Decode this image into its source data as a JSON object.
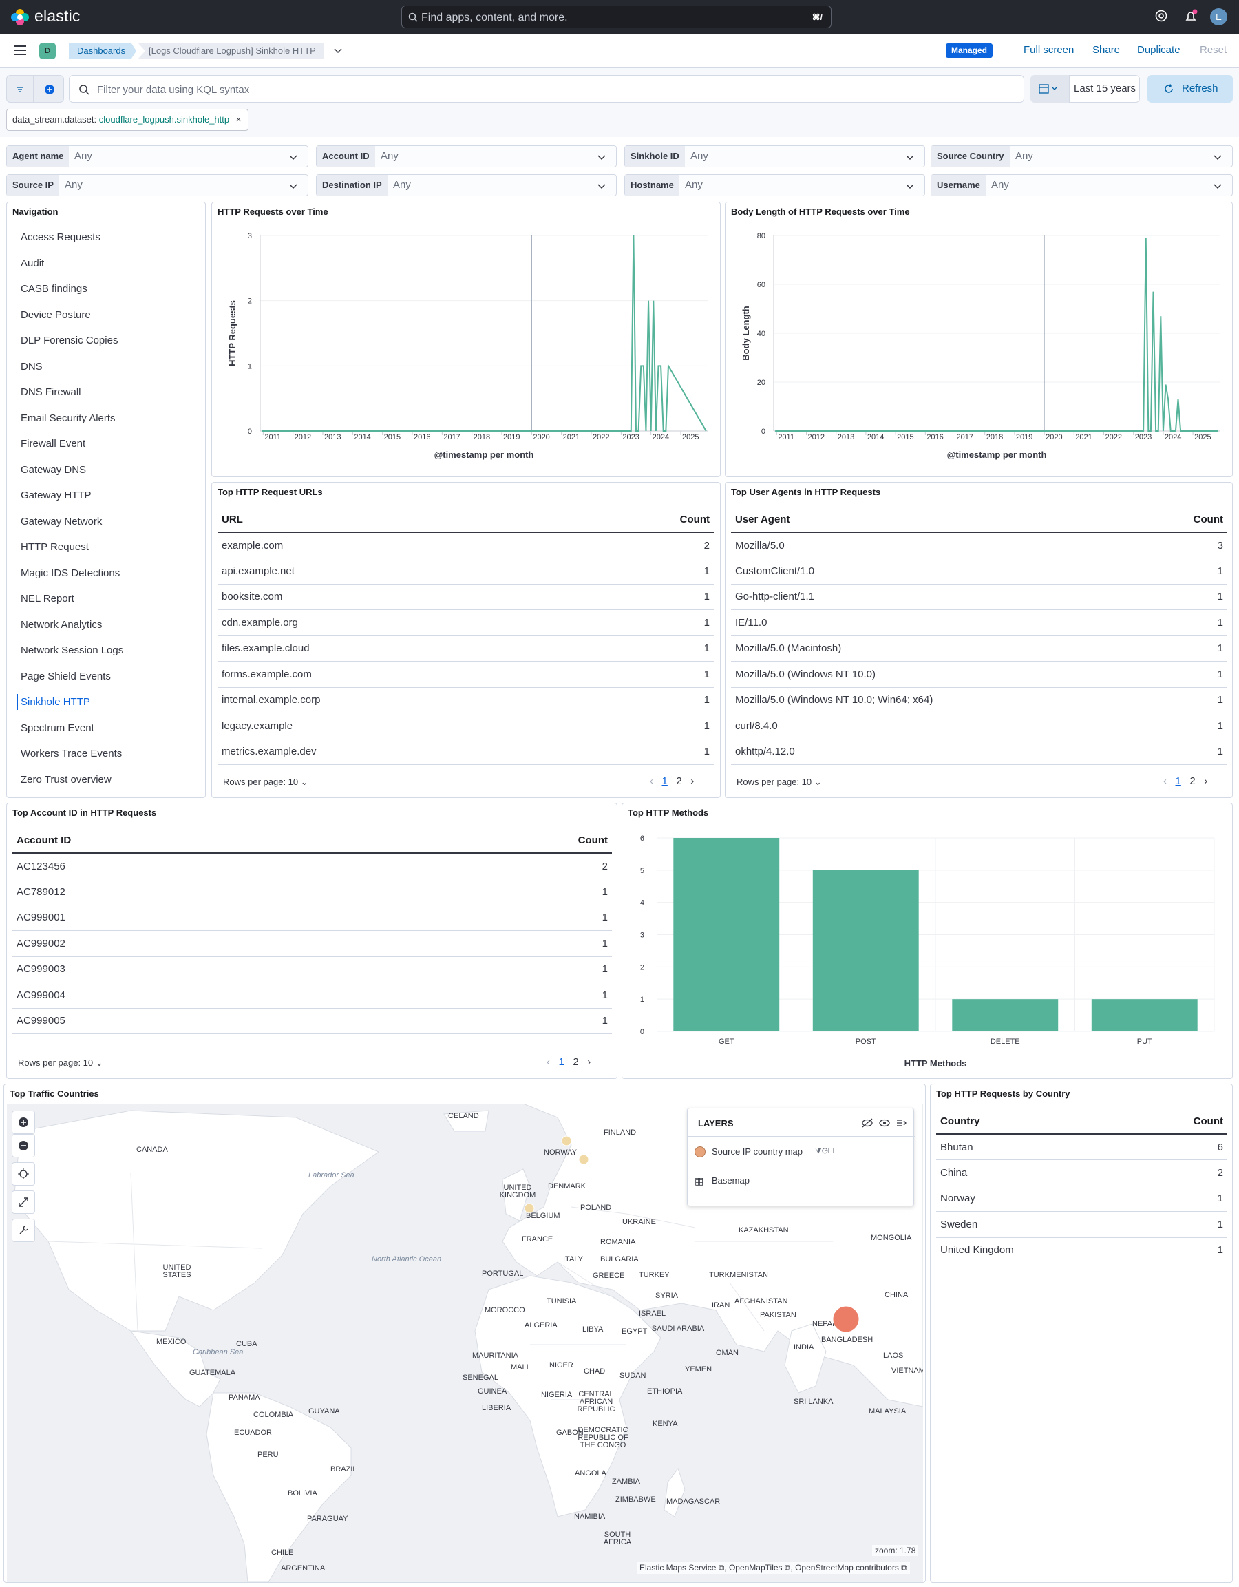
{
  "header": {
    "logo": "elastic",
    "search_placeholder": "Find apps, content, and more.",
    "search_shortcut": "⌘/",
    "avatar": "E"
  },
  "breadcrumbs": {
    "app_badge": "D",
    "root": "Dashboards",
    "current": "[Logs Cloudflare Logpush] Sinkhole HTTP",
    "managed": "Managed",
    "actions": [
      "Full screen",
      "Share",
      "Duplicate",
      "Reset"
    ]
  },
  "query": {
    "placeholder": "Filter your data using KQL syntax",
    "time_range": "Last 15 years",
    "refresh": "Refresh"
  },
  "filter_pill": {
    "key": "data_stream.dataset: ",
    "value": "cloudflare_logpush.sinkhole_http"
  },
  "controls": [
    {
      "label": "Agent name",
      "value": "Any"
    },
    {
      "label": "Account ID",
      "value": "Any"
    },
    {
      "label": "Sinkhole ID",
      "value": "Any"
    },
    {
      "label": "Source Country",
      "value": "Any"
    },
    {
      "label": "Source IP",
      "value": "Any"
    },
    {
      "label": "Destination IP",
      "value": "Any"
    },
    {
      "label": "Hostname",
      "value": "Any"
    },
    {
      "label": "Username",
      "value": "Any"
    }
  ],
  "navigation": {
    "title": "Navigation",
    "items": [
      "Access Requests",
      "Audit",
      "CASB findings",
      "Device Posture",
      "DLP Forensic Copies",
      "DNS",
      "DNS Firewall",
      "Email Security Alerts",
      "Firewall Event",
      "Gateway DNS",
      "Gateway HTTP",
      "Gateway Network",
      "HTTP Request",
      "Magic IDS Detections",
      "NEL Report",
      "Network Analytics",
      "Network Session Logs",
      "Page Shield Events",
      "Sinkhole HTTP",
      "Spectrum Event",
      "Workers Trace Events",
      "Zero Trust overview"
    ],
    "active": "Sinkhole HTTP"
  },
  "chart_data": [
    {
      "type": "line",
      "title": "HTTP Requests over Time",
      "xlabel": "@timestamp per month",
      "ylabel": "HTTP Requests",
      "ylim": [
        0,
        3
      ],
      "yticks": [
        0,
        1,
        2,
        3
      ],
      "xticks": [
        "2011",
        "2012",
        "2013",
        "2014",
        "2015",
        "2016",
        "2017",
        "2018",
        "2019",
        "2020",
        "2021",
        "2022",
        "2023",
        "2024",
        "2025"
      ],
      "series": [
        {
          "x": [
            "2023-05",
            "2023-06",
            "2023-07",
            "2023-08",
            "2023-09",
            "2023-10",
            "2023-11",
            "2023-12",
            "2024-01",
            "2024-02",
            "2024-03",
            "2024-04",
            "2024-05",
            "2024-06",
            "2024-07",
            "2024-08"
          ],
          "y": [
            0,
            3,
            0,
            0,
            1,
            1,
            0,
            2,
            0,
            2,
            0,
            1,
            1,
            0,
            0,
            1
          ]
        }
      ]
    },
    {
      "type": "line",
      "title": "Body Length of HTTP Requests over Time",
      "xlabel": "@timestamp per month",
      "ylabel": "Body Length",
      "ylim": [
        0,
        80
      ],
      "yticks": [
        0,
        20,
        40,
        60,
        80
      ],
      "xticks": [
        "2011",
        "2012",
        "2013",
        "2014",
        "2015",
        "2016",
        "2017",
        "2018",
        "2019",
        "2020",
        "2021",
        "2022",
        "2023",
        "2024",
        "2025"
      ],
      "series": [
        {
          "x": [
            "2023-05",
            "2023-06",
            "2023-07",
            "2023-08",
            "2023-09",
            "2023-10",
            "2023-11",
            "2023-12",
            "2024-01",
            "2024-02",
            "2024-03",
            "2024-04",
            "2024-05",
            "2024-06",
            "2024-07",
            "2024-08"
          ],
          "y": [
            0,
            79,
            0,
            0,
            57,
            0,
            0,
            47,
            0,
            19,
            13,
            0,
            0,
            0,
            13,
            0
          ]
        }
      ]
    },
    {
      "type": "bar",
      "title": "Top HTTP Methods",
      "xlabel": "HTTP Methods",
      "ylim": [
        0,
        6
      ],
      "yticks": [
        0,
        1,
        2,
        3,
        4,
        5,
        6
      ],
      "categories": [
        "GET",
        "POST",
        "DELETE",
        "PUT"
      ],
      "values": [
        6,
        5,
        1,
        1
      ]
    }
  ],
  "top_urls": {
    "title": "Top HTTP Request URLs",
    "headers": [
      "URL",
      "Count"
    ],
    "rows": [
      [
        "example.com",
        "2"
      ],
      [
        "api.example.net",
        "1"
      ],
      [
        "booksite.com",
        "1"
      ],
      [
        "cdn.example.org",
        "1"
      ],
      [
        "files.example.cloud",
        "1"
      ],
      [
        "forms.example.com",
        "1"
      ],
      [
        "internal.example.corp",
        "1"
      ],
      [
        "legacy.example",
        "1"
      ],
      [
        "metrics.example.dev",
        "1"
      ]
    ],
    "rows_per_page": "Rows per page: 10",
    "pages": [
      "1",
      "2"
    ]
  },
  "top_agents": {
    "title": "Top User Agents in HTTP Requests",
    "headers": [
      "User Agent",
      "Count"
    ],
    "rows": [
      [
        "Mozilla/5.0",
        "3"
      ],
      [
        "CustomClient/1.0",
        "1"
      ],
      [
        "Go-http-client/1.1",
        "1"
      ],
      [
        "IE/11.0",
        "1"
      ],
      [
        "Mozilla/5.0 (Macintosh)",
        "1"
      ],
      [
        "Mozilla/5.0 (Windows NT 10.0)",
        "1"
      ],
      [
        "Mozilla/5.0 (Windows NT 10.0; Win64; x64)",
        "1"
      ],
      [
        "curl/8.4.0",
        "1"
      ],
      [
        "okhttp/4.12.0",
        "1"
      ]
    ],
    "rows_per_page": "Rows per page: 10",
    "pages": [
      "1",
      "2"
    ]
  },
  "top_accounts": {
    "title": "Top Account ID in HTTP Requests",
    "headers": [
      "Account ID",
      "Count"
    ],
    "rows": [
      [
        "AC123456",
        "2"
      ],
      [
        "AC789012",
        "1"
      ],
      [
        "AC999001",
        "1"
      ],
      [
        "AC999002",
        "1"
      ],
      [
        "AC999003",
        "1"
      ],
      [
        "AC999004",
        "1"
      ],
      [
        "AC999005",
        "1"
      ]
    ],
    "rows_per_page": "Rows per page: 10",
    "pages": [
      "1",
      "2"
    ]
  },
  "top_countries": {
    "title": "Top HTTP Requests by Country",
    "headers": [
      "Country",
      "Count"
    ],
    "rows": [
      [
        "Bhutan",
        "6"
      ],
      [
        "China",
        "2"
      ],
      [
        "Norway",
        "1"
      ],
      [
        "Sweden",
        "1"
      ],
      [
        "United Kingdom",
        "1"
      ]
    ]
  },
  "map": {
    "title": "Top Traffic Countries",
    "layers_title": "LAYERS",
    "layers": [
      "Source IP country map",
      "Basemap"
    ],
    "zoom": "zoom: 1.78",
    "attribution": "Elastic Maps Service ⧉, OpenMapTiles ⧉, OpenStreetMap contributors ⧉",
    "labels": [
      "ICELAND",
      "FINLAND",
      "NORWAY",
      "CANADA",
      "UNITED KINGDOM",
      "DENMARK",
      "BELGIUM",
      "POLAND",
      "UKRAINE",
      "FRANCE",
      "ROMANIA",
      "KAZAKHSTAN",
      "MONGOLIA",
      "ITALY",
      "BULGARIA",
      "UNITED STATES",
      "PORTUGAL",
      "GREECE",
      "TURKEY",
      "TURKMENISTAN",
      "CHINA",
      "TUNISIA",
      "SYRIA",
      "AFGHANISTAN",
      "MOROCCO",
      "ISRAEL",
      "IRAN",
      "PAKISTAN",
      "NEPAL",
      "ALGERIA",
      "LIBYA",
      "EGYPT",
      "SAUDI ARABIA",
      "BANGLADESH",
      "MEXICO",
      "CUBA",
      "MAURITANIA",
      "OMAN",
      "INDIA",
      "LAOS",
      "GUATEMALA",
      "MALI",
      "NIGER",
      "CHAD",
      "SUDAN",
      "YEMEN",
      "VIETNAM",
      "SENEGAL",
      "GUINEA",
      "NIGERIA",
      "ETHIOPIA",
      "PANAMA",
      "LIBERIA",
      "CENTRAL AFRICAN REPUBLIC",
      "COLOMBIA",
      "GUYANA",
      "SRI LANKA",
      "MALAYSIA",
      "ECUADOR",
      "GABON",
      "DEMOCRATIC REPUBLIC OF THE CONGO",
      "KENYA",
      "PERU",
      "BRAZIL",
      "ANGOLA",
      "ZAMBIA",
      "BOLIVIA",
      "ZIMBABWE",
      "MADAGASCAR",
      "NAMIBIA",
      "PARAGUAY",
      "SOUTH AFRICA",
      "CHILE",
      "ARGENTINA"
    ],
    "seas": [
      "Labrador Sea",
      "North Atlantic Ocean",
      "Caribbean Sea"
    ],
    "colors": {
      "point": "#e7664c",
      "point_small": "#f1d9a6",
      "land": "#ffffff",
      "water": "#eef0f4"
    }
  }
}
